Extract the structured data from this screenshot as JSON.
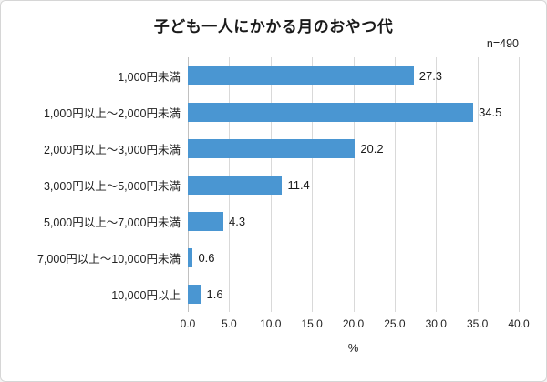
{
  "chart_data": {
    "type": "bar",
    "orientation": "horizontal",
    "title": "子ども一人にかかる月のおやつ代",
    "n_label": "n=490",
    "categories": [
      "1,000円未満",
      "1,000円以上〜2,000円未満",
      "2,000円以上〜3,000円未満",
      "3,000円以上〜5,000円未満",
      "5,000円以上〜7,000円未満",
      "7,000円以上〜10,000円未満",
      "10,000円以上"
    ],
    "values": [
      27.3,
      34.5,
      20.2,
      11.4,
      4.3,
      0.6,
      1.6
    ],
    "value_labels": [
      "27.3",
      "34.5",
      "20.2",
      "11.4",
      "4.3",
      "0.6",
      "1.6"
    ],
    "xlabel": "%",
    "xlim": [
      0,
      40
    ],
    "x_ticks": [
      "0.0",
      "5.0",
      "10.0",
      "15.0",
      "20.0",
      "25.0",
      "30.0",
      "35.0",
      "40.0"
    ],
    "bar_color": "#4a96d2",
    "gridline_color": "#d9d9d9",
    "axis_line_color": "#c0c0c0",
    "grid": true,
    "legend": false
  }
}
